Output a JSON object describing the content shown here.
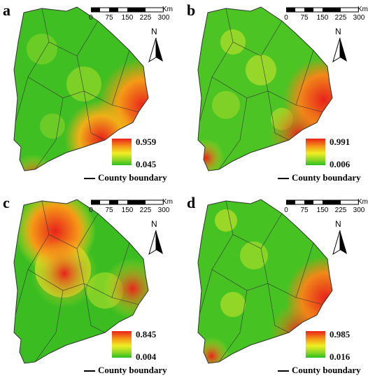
{
  "colors": {
    "high": "#e8221b",
    "mid": "#f0ee22",
    "low": "#2bbf21",
    "boundary": "#333333"
  },
  "north_label": "N",
  "scale": {
    "unit": "Km",
    "ticks": [
      "0",
      "75",
      "150",
      "225",
      "300"
    ]
  },
  "legend_item": "County boundary",
  "panels": [
    {
      "letter": "a",
      "max": "0.959",
      "min": "0.045"
    },
    {
      "letter": "b",
      "max": "0.991",
      "min": "0.006"
    },
    {
      "letter": "c",
      "max": "0.845",
      "min": "0.004"
    },
    {
      "letter": "d",
      "max": "0.985",
      "min": "0.016"
    }
  ]
}
